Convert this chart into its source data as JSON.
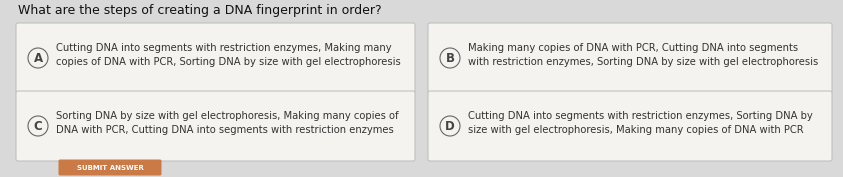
{
  "title": "What are the steps of creating a DNA fingerprint in order?",
  "background_color": "#d9d9d9",
  "options": [
    {
      "label": "A",
      "text": "Cutting DNA into segments with restriction enzymes, Making many\ncopies of DNA with PCR, Sorting DNA by size with gel electrophoresis"
    },
    {
      "label": "B",
      "text": "Making many copies of DNA with PCR, Cutting DNA into segments\nwith restriction enzymes, Sorting DNA by size with gel electrophoresis"
    },
    {
      "label": "C",
      "text": "Sorting DNA by size with gel electrophoresis, Making many copies of\nDNA with PCR, Cutting DNA into segments with restriction enzymes"
    },
    {
      "label": "D",
      "text": "Cutting DNA into segments with restriction enzymes, Sorting DNA by\nsize with gel electrophoresis, Making many copies of DNA with PCR"
    }
  ],
  "submit_button_color": "#cc7a45",
  "submit_button_text": "SUBMIT ANSWER",
  "box_facecolor": "#f5f3ef",
  "box_edgecolor": "#bbbbbb",
  "circle_facecolor": "#f5f3ef",
  "circle_edgecolor": "#666666",
  "label_color": "#444444",
  "text_color": "#333333",
  "title_color": "#111111",
  "title_fontsize": 9.0,
  "option_fontsize": 7.2,
  "label_fontsize": 8.5
}
